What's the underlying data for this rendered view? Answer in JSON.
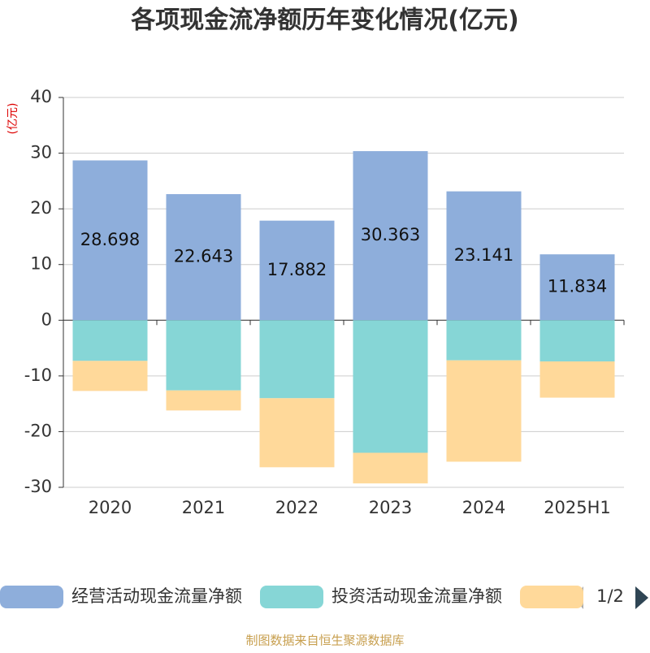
{
  "chart_data": {
    "type": "stacked_bar",
    "title": "各项现金流净额历年变化情况(亿元)",
    "y_unit": "(亿元)",
    "categories": [
      "2020",
      "2021",
      "2022",
      "2023",
      "2024",
      "2025H1"
    ],
    "series": [
      {
        "name": "经营活动现金流量净额",
        "color": "#8eaedb",
        "values": [
          28.698,
          22.643,
          17.882,
          30.363,
          23.141,
          11.834
        ],
        "show_labels": true
      },
      {
        "name": "投资活动现金流量净额",
        "color": "#86d6d6",
        "values": [
          -7.3,
          -12.6,
          -14.0,
          -23.8,
          -7.2,
          -7.4
        ]
      },
      {
        "color": "#ffd99a",
        "values": [
          -5.4,
          -3.6,
          -12.4,
          -5.5,
          -18.2,
          -6.5
        ]
      }
    ],
    "ylim": [
      -30,
      40
    ],
    "yticks": [
      -30,
      -20,
      -10,
      0,
      10,
      20,
      30,
      40
    ],
    "grid": true,
    "legend_page": "1/2",
    "source": "制图数据来自恒生聚源数据库"
  }
}
